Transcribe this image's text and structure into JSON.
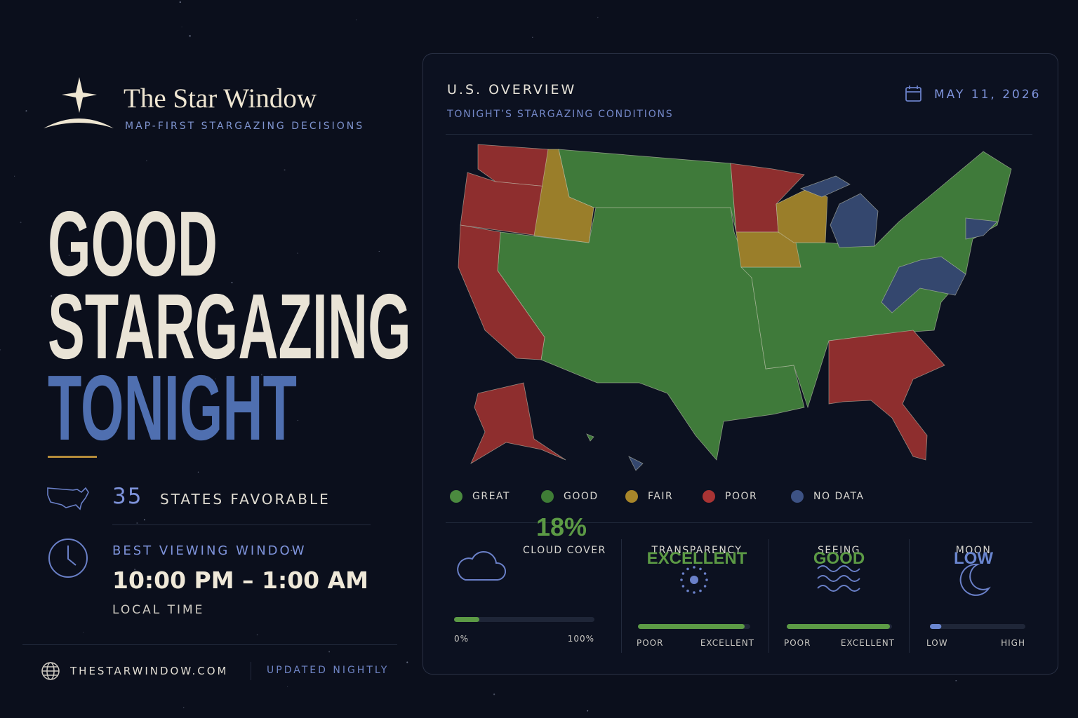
{
  "brand": {
    "name": "The Star Window",
    "tagline": "MAP-FIRST STARGAZING DECISIONS"
  },
  "headline": {
    "lines": [
      "GOOD",
      "STARGAZING"
    ],
    "accent": "TONIGHT"
  },
  "stats": {
    "favorable_count": 35,
    "favorable_label": "STATES FAVORABLE",
    "window_label": "BEST VIEWING WINDOW",
    "window": "10:00 PM – 1:00 AM",
    "window_note": "LOCAL TIME"
  },
  "footer": {
    "site": "THESTARWINDOW.COM",
    "note": "UPDATED NIGHTLY"
  },
  "panel": {
    "title": "U.S. OVERVIEW",
    "subtitle": "TONIGHT’S STARGAZING CONDITIONS",
    "date": "MAY 11, 2026",
    "legend": [
      {
        "label": "GREAT",
        "color": "#4b8a3f"
      },
      {
        "label": "GOOD",
        "color": "#3f7d36"
      },
      {
        "label": "FAIR",
        "color": "#a8862a"
      },
      {
        "label": "POOR",
        "color": "#a93434"
      },
      {
        "label": "NO DATA",
        "color": "#3d5284"
      }
    ],
    "metrics": [
      {
        "label": "CLOUD COVER",
        "value": 18,
        "value_label": "18%",
        "range": [
          0,
          100
        ],
        "scale": [
          "0%",
          "100%"
        ],
        "color": "#5c9a45"
      },
      {
        "label": "TRANSPARENCY",
        "value_label": "EXCELLENT",
        "value": 95,
        "range": [
          0,
          100
        ],
        "scale": [
          "POOR",
          "EXCELLENT"
        ],
        "color": "#5c9a45"
      },
      {
        "label": "SEEING",
        "value_label": "GOOD",
        "value": 98,
        "range": [
          0,
          100
        ],
        "scale": [
          "POOR",
          "EXCELLENT"
        ],
        "color": "#5c9a45"
      },
      {
        "label": "MOON",
        "value_label": "LOW",
        "value": 12,
        "range": [
          0,
          100
        ],
        "scale": [
          "LOW",
          "HIGH"
        ],
        "color": "#6a86d0"
      }
    ]
  }
}
